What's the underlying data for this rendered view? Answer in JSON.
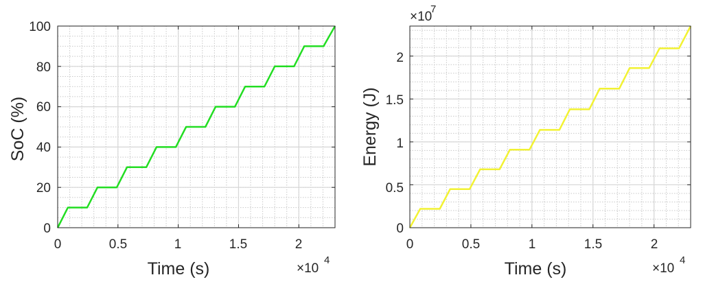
{
  "chart_data": [
    {
      "type": "line",
      "xlabel": "Time (s)",
      "ylabel": "SoC (%)",
      "x_multiplier": "×10",
      "x_multiplier_exp": "4",
      "x_ticks": [
        "0",
        "0.5",
        "1",
        "1.5",
        "2"
      ],
      "y_ticks": [
        "0",
        "20",
        "40",
        "60",
        "80",
        "100"
      ],
      "xlim": [
        0,
        23000
      ],
      "ylim": [
        0,
        100
      ],
      "grid": true,
      "minor_grid": true,
      "line_color": "#22dd22",
      "series": [
        {
          "x": [
            0,
            850,
            2450,
            3300,
            4900,
            5750,
            7350,
            8200,
            9800,
            10650,
            12250,
            13100,
            14700,
            15550,
            17150,
            18000,
            19600,
            20450,
            22050,
            23000
          ],
          "y": [
            0,
            10,
            10,
            20,
            20,
            30,
            30,
            40,
            40,
            50,
            50,
            60,
            60,
            70,
            70,
            80,
            80,
            90,
            90,
            100
          ]
        }
      ]
    },
    {
      "type": "line",
      "xlabel": "Time (s)",
      "ylabel": "Energy (J)",
      "x_multiplier": "×10",
      "x_multiplier_exp": "4",
      "y_multiplier": "×10",
      "y_multiplier_exp": "7",
      "x_ticks": [
        "0",
        "0.5",
        "1",
        "1.5",
        "2"
      ],
      "y_ticks": [
        "0",
        "0.5",
        "1",
        "1.5",
        "2"
      ],
      "xlim": [
        0,
        23000
      ],
      "ylim": [
        0,
        2.35
      ],
      "grid": true,
      "minor_grid": true,
      "line_color": "#f2f232",
      "series": [
        {
          "x": [
            0,
            850,
            2450,
            3300,
            4900,
            5750,
            7350,
            8200,
            9800,
            10650,
            12250,
            13100,
            14700,
            15550,
            17150,
            18000,
            19600,
            20450,
            22050,
            23000
          ],
          "y": [
            0,
            0.22,
            0.22,
            0.45,
            0.45,
            0.68,
            0.68,
            0.91,
            0.91,
            1.14,
            1.14,
            1.38,
            1.38,
            1.62,
            1.62,
            1.86,
            1.86,
            2.09,
            2.09,
            2.35
          ]
        }
      ]
    }
  ]
}
